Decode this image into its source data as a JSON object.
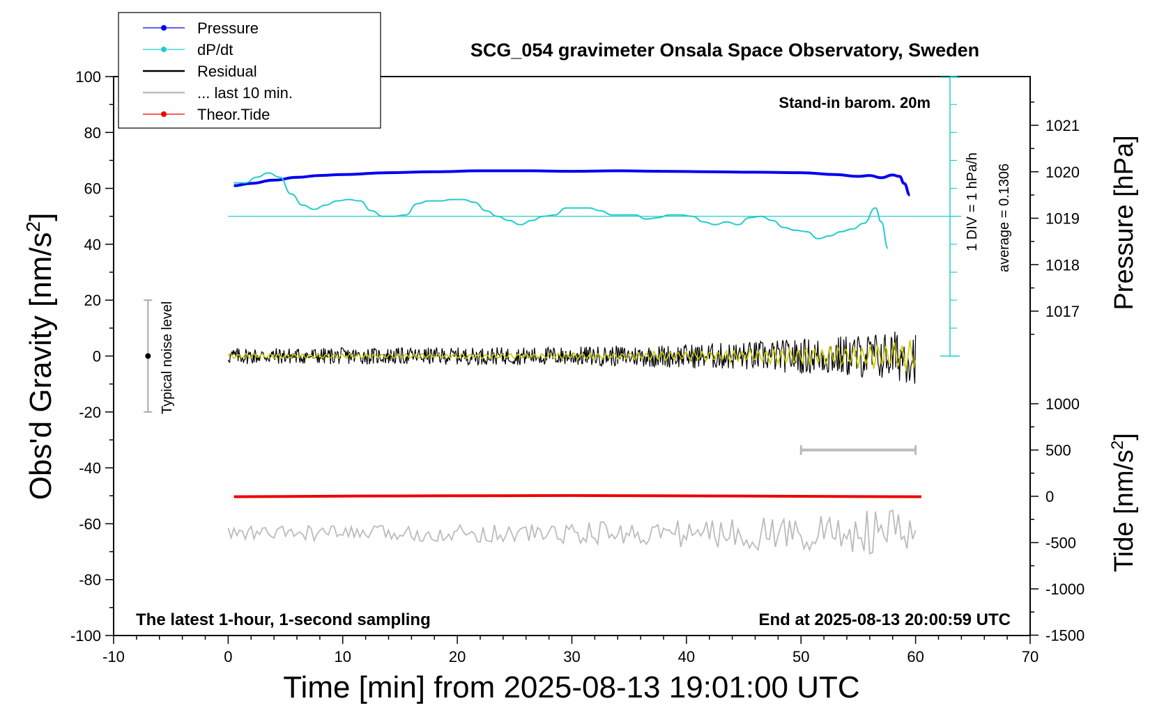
{
  "chart_data": {
    "type": "line",
    "title": "SCG_054 gravimeter Onsala Space Observatory, Sweden",
    "xlabel": "Time [min] from 2025-08-13 19:01:00 UTC",
    "ylabel_left": "Obs'd Gravity [nm/s",
    "ylabel_left_sup": "2",
    "ylabel_left_close": "]",
    "ylabel_right_top": "Pressure [hPa]",
    "ylabel_right_bottom": "Tide [nm/s",
    "ylabel_right_bottom_sup": "2",
    "ylabel_right_bottom_close": "]",
    "xlim": [
      -10,
      70
    ],
    "ylim": [
      -100,
      100
    ],
    "pressure_ylim": [
      1016,
      1022
    ],
    "tide_ylim": [
      -1500,
      1500
    ],
    "x_ticks": [
      "-10",
      "0",
      "10",
      "20",
      "30",
      "40",
      "50",
      "60",
      "70"
    ],
    "y_ticks": [
      "100",
      "80",
      "60",
      "40",
      "20",
      "0",
      "-20",
      "-40",
      "-60",
      "-80",
      "-100"
    ],
    "pressure_ticks": [
      "1021",
      "1020",
      "1019",
      "1018",
      "1017"
    ],
    "tide_ticks": [
      "1000",
      "500",
      "0",
      "-500",
      "-1000",
      "-1500"
    ],
    "annotations": {
      "stand_in": "Stand-in barom. 20m",
      "div_note": "1 DIV = 1 hPa/h",
      "average": "average = 0.1306",
      "noise": "Typical noise level",
      "latest": "The latest 1-hour, 1-second sampling",
      "end_at": "End at 2025-08-13 20:00:59 UTC"
    },
    "legend_position": "top-left",
    "legend": [
      {
        "label": "Pressure",
        "color": "#0000ee",
        "marker": true
      },
      {
        "label": "dP/dt",
        "color": "#22cccc",
        "marker": true
      },
      {
        "label": "Residual",
        "color": "#000000",
        "marker": false
      },
      {
        "label": "... last 10 min.",
        "color": "#bbbbbb",
        "marker": false
      },
      {
        "label": "Theor.Tide",
        "color": "#ee0000",
        "marker": true
      }
    ],
    "series": [
      {
        "name": "Pressure",
        "color": "#0000ee",
        "axis": "pressure",
        "x": [
          0.5,
          2,
          4,
          6,
          8,
          10,
          14,
          18,
          22,
          26,
          30,
          34,
          38,
          42,
          46,
          50,
          53,
          55,
          56,
          57,
          58,
          58.6,
          59,
          59.5
        ],
        "y": [
          1019.7,
          1019.75,
          1019.82,
          1019.88,
          1019.92,
          1019.94,
          1019.98,
          1020.0,
          1020.02,
          1020.02,
          1020.01,
          1020.02,
          1020.01,
          1020.0,
          1019.99,
          1019.98,
          1019.94,
          1019.9,
          1019.92,
          1019.87,
          1019.93,
          1019.9,
          1019.75,
          1019.5
        ]
      },
      {
        "name": "dP/dt",
        "color": "#22cccc",
        "axis": "gravity",
        "x": [
          0.5,
          1.5,
          2.5,
          3.5,
          4.5,
          5.5,
          6.5,
          7.5,
          8.5,
          9.5,
          10.5,
          11.5,
          12.5,
          13.5,
          14.5,
          15.5,
          16.5,
          17.5,
          18.5,
          19.5,
          20.5,
          21.5,
          22.5,
          23.5,
          24.5,
          25.5,
          26.5,
          27.5,
          28.5,
          29.5,
          30.5,
          31.5,
          32.5,
          33.5,
          34.5,
          35.5,
          36.5,
          37.5,
          38.5,
          39.5,
          40.5,
          41.5,
          42.5,
          43.5,
          44.5,
          45.5,
          46.5,
          47.5,
          48.5,
          49.5,
          50.5,
          51.5,
          52.5,
          53.5,
          54.5,
          55.5,
          56.5,
          57,
          57.6
        ],
        "y": [
          62,
          62,
          64,
          65.5,
          64,
          58,
          54,
          52.5,
          54,
          55.5,
          56,
          55.5,
          52,
          50,
          50,
          50.5,
          54.5,
          55.5,
          55.5,
          56,
          56,
          55,
          52,
          50,
          48.5,
          47,
          48.5,
          50,
          50.5,
          53,
          53,
          53,
          52,
          50.5,
          50.5,
          50.5,
          49,
          49.5,
          50.5,
          50.5,
          50,
          48,
          47,
          48,
          47,
          49.5,
          50,
          48.5,
          46,
          45,
          44.5,
          42,
          43,
          44.5,
          45.5,
          47.5,
          53,
          48,
          38.5
        ]
      },
      {
        "name": "Residual",
        "color": "#000000",
        "axis": "gravity",
        "x": [
          0,
          60
        ],
        "y": [
          0,
          0
        ],
        "amplitude_start": 3,
        "amplitude_end": 10
      },
      {
        "name": "Residual filtered",
        "color": "#cccc00",
        "axis": "gravity",
        "x": [
          0,
          60
        ],
        "y": [
          0,
          0
        ],
        "amplitude_start": 1,
        "amplitude_end": 6
      },
      {
        "name": "... last 10 min.",
        "color": "#bbbbbb",
        "axis": "tide",
        "x": [
          0,
          60
        ],
        "y": [
          -400,
          -400
        ],
        "amplitude_start": 80,
        "amplitude_end": 280
      },
      {
        "name": "Theor.Tide",
        "color": "#ee0000",
        "axis": "tide",
        "x": [
          0.5,
          10,
          20,
          30,
          40,
          50,
          60.5
        ],
        "y": [
          -5,
          2,
          6,
          8,
          5,
          0,
          -5
        ]
      }
    ],
    "noise_bar": {
      "x": -7,
      "y_min": -20,
      "y_max": 20,
      "center": 0
    },
    "gray_bar": {
      "x_start": 50,
      "x_end": 60,
      "y": 500
    }
  }
}
